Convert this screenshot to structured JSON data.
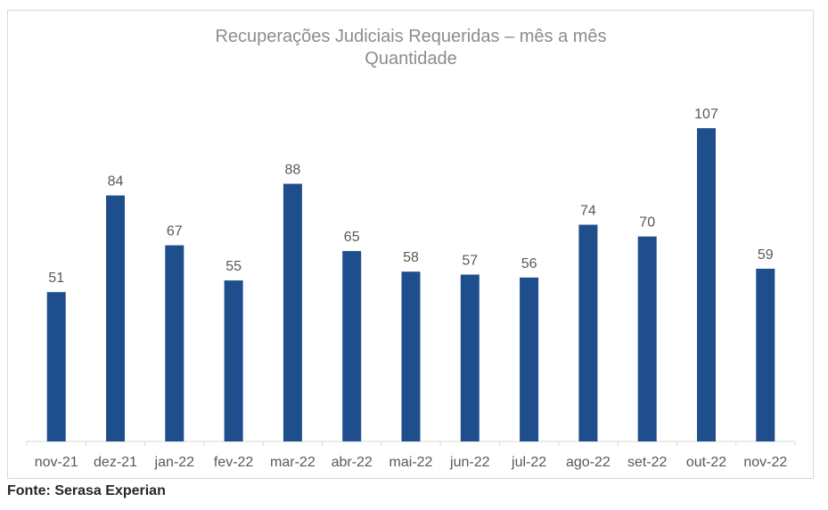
{
  "chart_data": {
    "type": "bar",
    "title": "Recuperações Judiciais Requeridas – mês a mês",
    "subtitle": "Quantidade",
    "categories": [
      "nov-21",
      "dez-21",
      "jan-22",
      "fev-22",
      "mar-22",
      "abr-22",
      "mai-22",
      "jun-22",
      "jul-22",
      "ago-22",
      "set-22",
      "out-22",
      "nov-22"
    ],
    "values": [
      51,
      84,
      67,
      55,
      88,
      65,
      58,
      57,
      56,
      74,
      70,
      107,
      59
    ],
    "data_labels": [
      "51",
      "84",
      "67",
      "55",
      "88",
      "65",
      "58",
      "57",
      "56",
      "74",
      "70",
      "107",
      "59"
    ],
    "xlabel": "",
    "ylabel": "",
    "ylim": [
      0,
      120
    ],
    "grid": false,
    "legend": "none",
    "bar_color": "#1f4e8c"
  },
  "source": "Fonte: Serasa Experian"
}
